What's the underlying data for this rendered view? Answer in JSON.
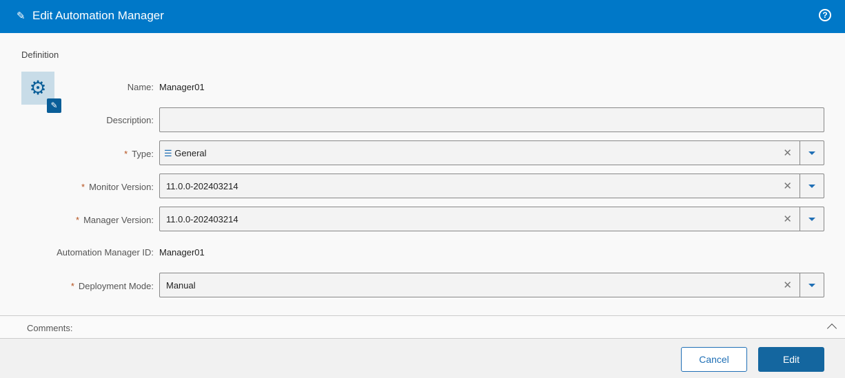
{
  "header": {
    "title": "Edit Automation Manager"
  },
  "section": {
    "title": "Definition"
  },
  "fields": {
    "name": {
      "label": "Name:",
      "value": "Manager01"
    },
    "description": {
      "label": "Description:",
      "value": ""
    },
    "type": {
      "label": "Type:",
      "value": "General"
    },
    "monitor_version": {
      "label": "Monitor Version:",
      "value": "11.0.0-202403214"
    },
    "manager_version": {
      "label": "Manager Version:",
      "value": "11.0.0-202403214"
    },
    "manager_id": {
      "label": "Automation Manager ID:",
      "value": "Manager01"
    },
    "deployment_mode": {
      "label": "Deployment Mode:",
      "value": "Manual"
    }
  },
  "required_mark": "*",
  "comments": {
    "label": "Comments:"
  },
  "footer": {
    "cancel": "Cancel",
    "edit": "Edit"
  }
}
